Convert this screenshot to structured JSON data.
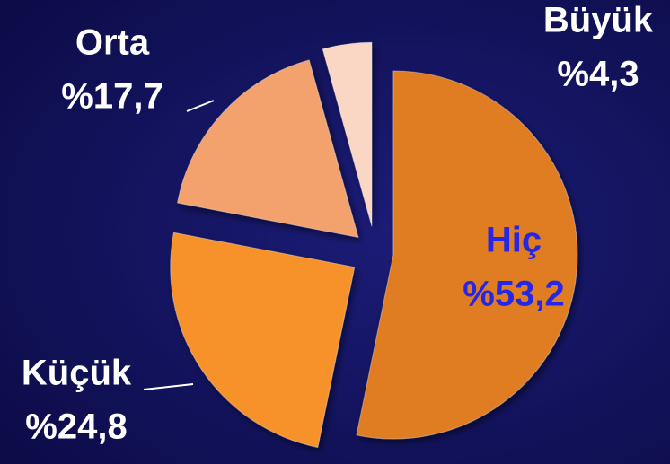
{
  "chart_data": {
    "type": "pie",
    "categories": [
      "Hiç",
      "Küçük",
      "Orta",
      "Büyük"
    ],
    "values": [
      53.2,
      24.8,
      17.7,
      4.3
    ],
    "value_labels": [
      "%53,2",
      "%24,8",
      "%17,7",
      "%4,3"
    ],
    "colors": [
      "#e07c22",
      "#f7922c",
      "#f3a26e",
      "#f9d7c4"
    ],
    "label_colors": [
      "#2626e6",
      "#ffffff",
      "#ffffff",
      "#ffffff"
    ]
  }
}
